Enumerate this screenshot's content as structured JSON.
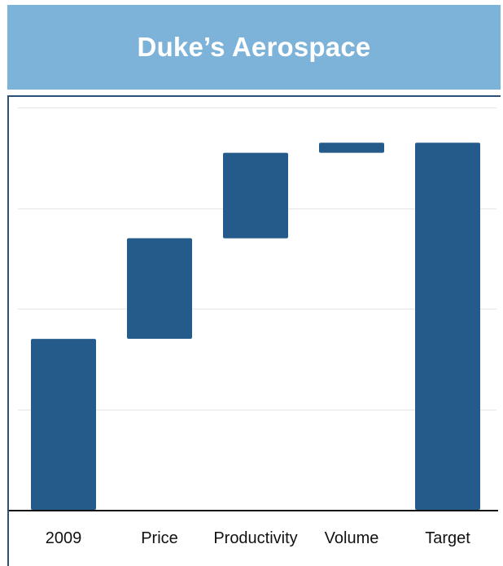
{
  "header": {
    "title": "Duke’s Aerospace"
  },
  "chart_data": {
    "type": "bar",
    "subtype": "waterfall",
    "title": "Duke’s Aerospace",
    "xlabel": "",
    "ylabel": "",
    "categories": [
      "2009",
      "Price",
      "Productivity",
      "Volume",
      "Target"
    ],
    "series": [
      {
        "values": [
          {
            "category": "2009",
            "start": 0,
            "end": 34,
            "kind": "total"
          },
          {
            "category": "Price",
            "start": 34,
            "end": 54,
            "kind": "increase"
          },
          {
            "category": "Productivity",
            "start": 54,
            "end": 71,
            "kind": "increase"
          },
          {
            "category": "Volume",
            "start": 71,
            "end": 73,
            "kind": "increase"
          },
          {
            "category": "Target",
            "start": 0,
            "end": 73,
            "kind": "total"
          }
        ]
      }
    ],
    "ylim": [
      0,
      80
    ],
    "grid": true,
    "y_gridlines": [
      20,
      40,
      60,
      80
    ],
    "y_tick_labels_shown": false,
    "legend": "none",
    "colors": {
      "bar": "#245b8a",
      "grid": "#e6e6e6",
      "axis": "#111111",
      "header_bg": "#7db3d8",
      "header_text": "#ffffff",
      "frame": "#2a4f7a"
    }
  }
}
